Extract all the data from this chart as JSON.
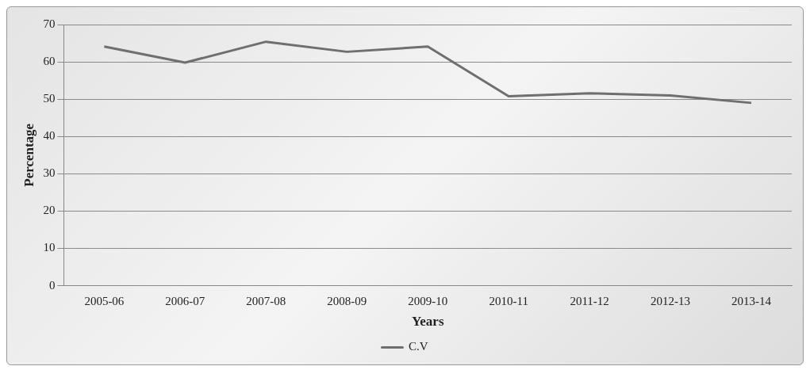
{
  "chart_data": {
    "type": "line",
    "xlabel": "Years",
    "ylabel": "Percentage",
    "categories": [
      "2005-06",
      "2006-07",
      "2007-08",
      "2008-09",
      "2009-10",
      "2010-11",
      "2011-12",
      "2012-13",
      "2013-14"
    ],
    "series": [
      {
        "name": "C.V",
        "color": "#6f6f6f",
        "values": [
          64.1,
          59.8,
          65.4,
          62.7,
          64.1,
          50.8,
          51.6,
          51.0,
          49.0
        ]
      }
    ],
    "ylim": [
      0,
      70
    ],
    "yticks": [
      0,
      10,
      20,
      30,
      40,
      50,
      60,
      70
    ],
    "grid": "y",
    "legend": "bottom",
    "marker": "none",
    "line_style": "solid"
  }
}
